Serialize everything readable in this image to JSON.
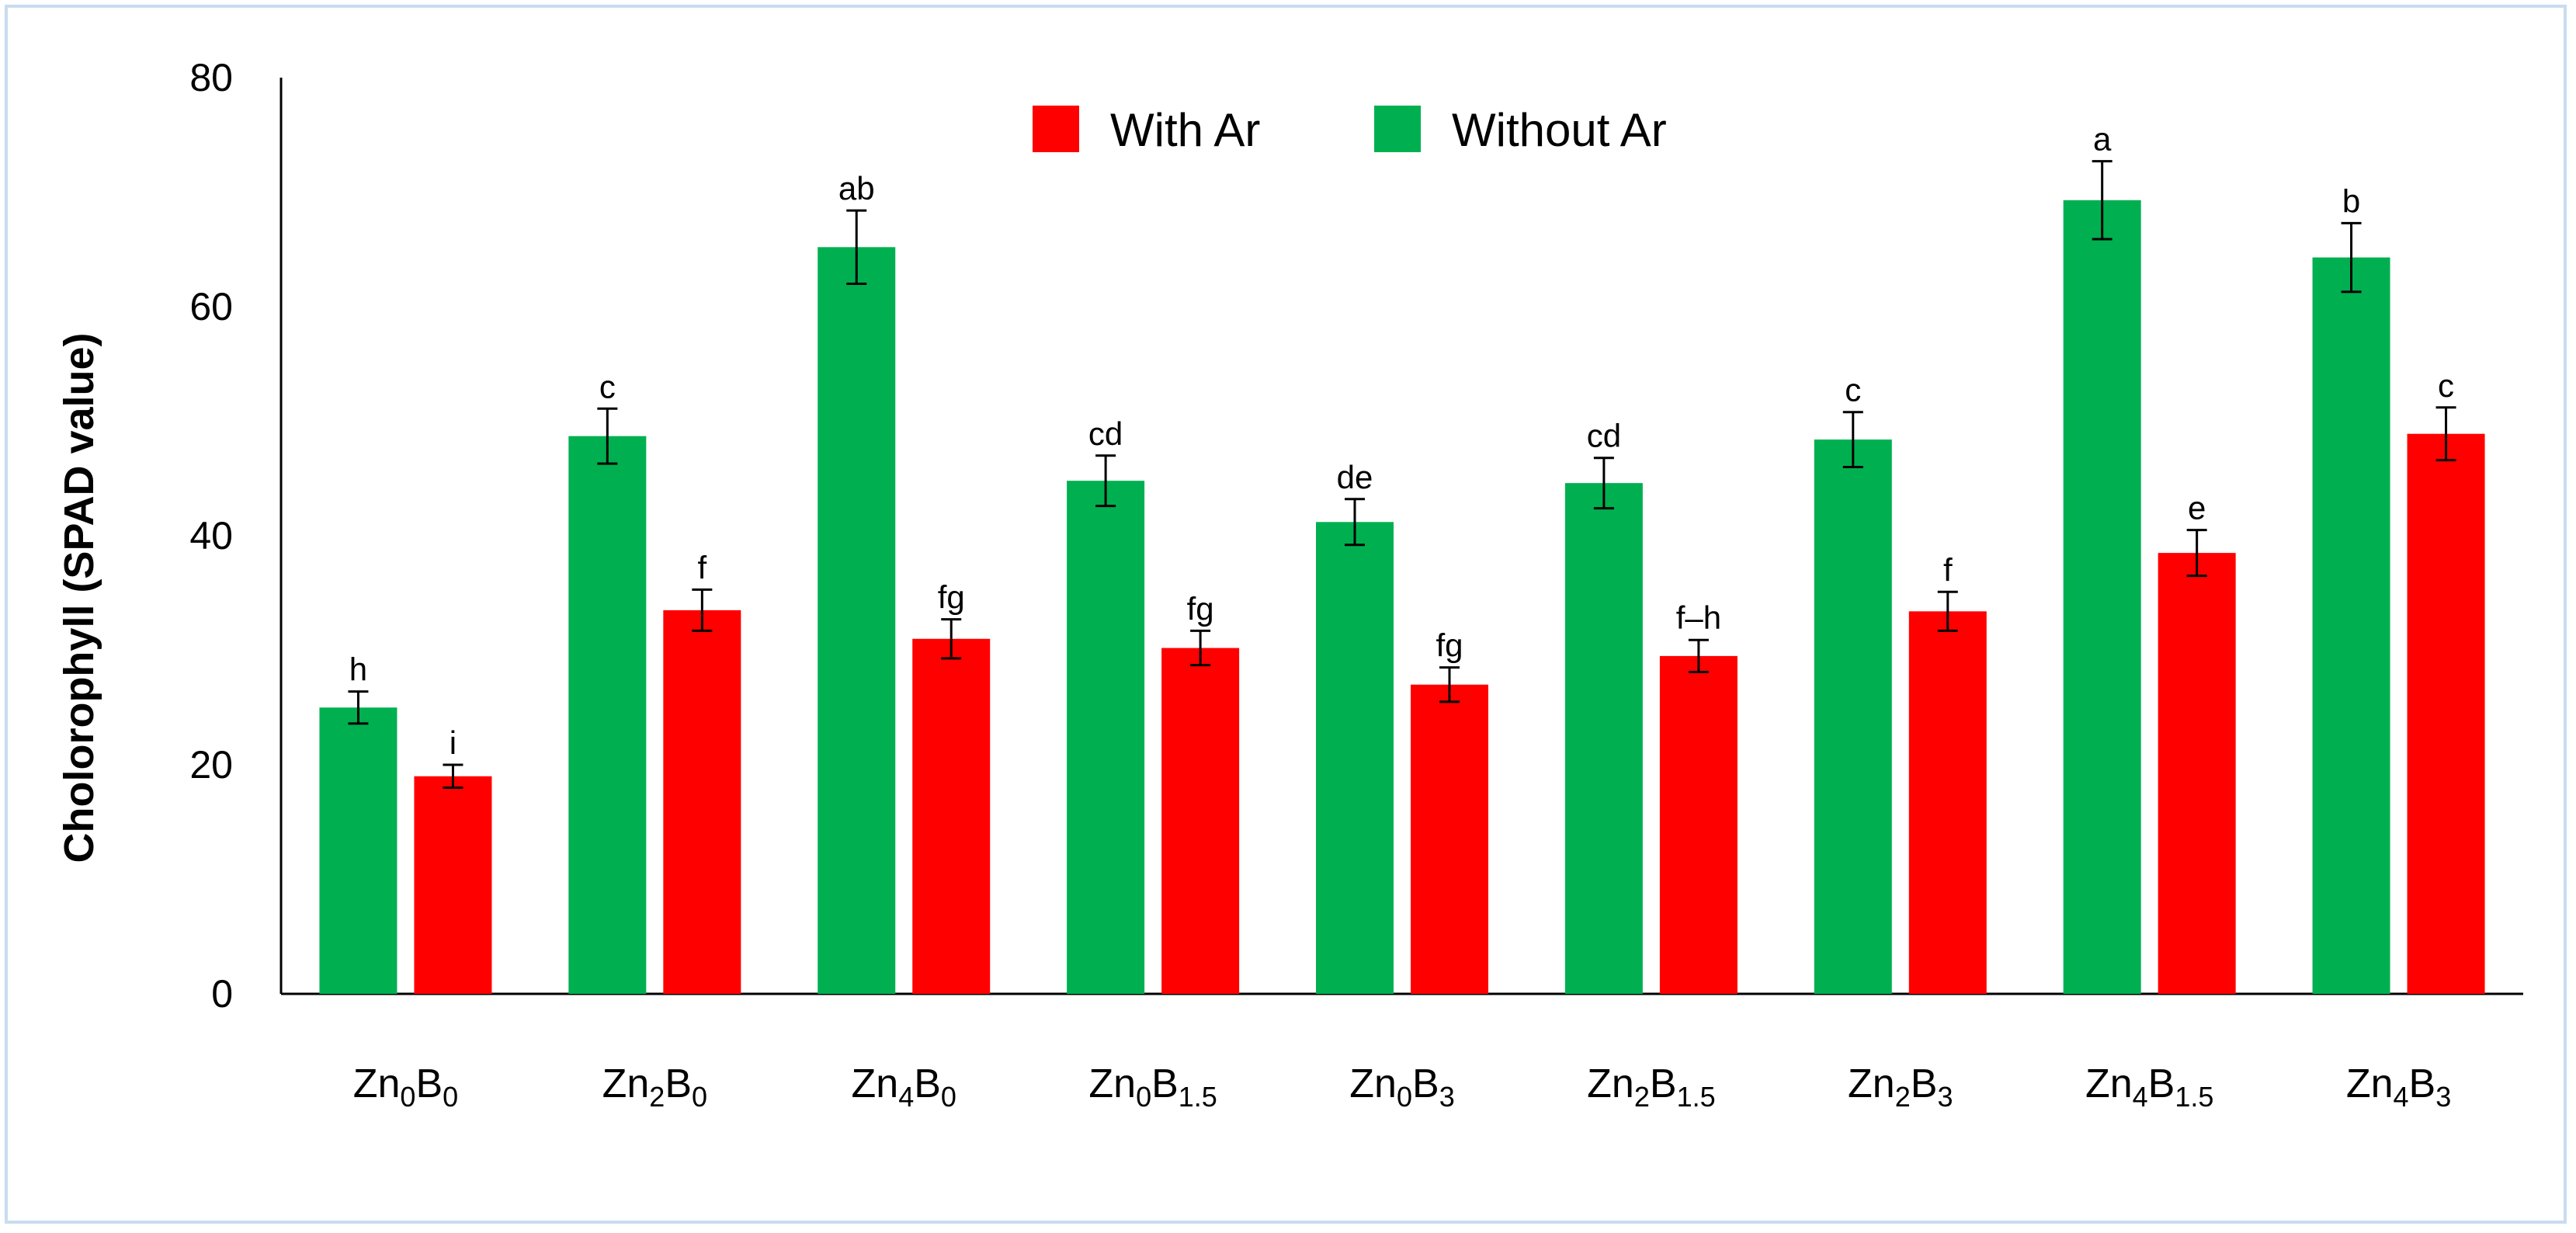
{
  "chart_data": {
    "type": "bar",
    "ylabel": "Cholorophyll (SPAD value)",
    "ylim": [
      0,
      80
    ],
    "yticks": [
      0,
      20,
      40,
      60,
      80
    ],
    "grid": false,
    "legend_position": "top-center",
    "categories": [
      {
        "base": "Zn",
        "base_sub": "0",
        "second": "B",
        "second_sub": "0"
      },
      {
        "base": "Zn",
        "base_sub": "2",
        "second": "B",
        "second_sub": "0"
      },
      {
        "base": "Zn",
        "base_sub": "4",
        "second": "B",
        "second_sub": "0"
      },
      {
        "base": "Zn",
        "base_sub": "0",
        "second": "B",
        "second_sub": "1.5"
      },
      {
        "base": "Zn",
        "base_sub": "0",
        "second": "B",
        "second_sub": "3"
      },
      {
        "base": "Zn",
        "base_sub": "2",
        "second": "B",
        "second_sub": "1.5"
      },
      {
        "base": "Zn",
        "base_sub": "2",
        "second": "B",
        "second_sub": "3"
      },
      {
        "base": "Zn",
        "base_sub": "4",
        "second": "B",
        "second_sub": "1.5"
      },
      {
        "base": "Zn",
        "base_sub": "4",
        "second": "B",
        "second_sub": "3"
      }
    ],
    "legend_order": [
      "With Ar",
      "Without Ar"
    ],
    "series": [
      {
        "name": "Without Ar",
        "color": "#00b050",
        "values": [
          25,
          48.7,
          65.2,
          44.8,
          41.2,
          44.6,
          48.4,
          69.3,
          64.3
        ],
        "errors": [
          1.4,
          2.4,
          3.2,
          2.2,
          2.0,
          2.2,
          2.4,
          3.4,
          3.0
        ],
        "letters": [
          "h",
          "c",
          "ab",
          "cd",
          "de",
          "cd",
          "c",
          "a",
          "b"
        ]
      },
      {
        "name": "With Ar",
        "color": "#ff0000",
        "values": [
          19,
          33.5,
          31,
          30.2,
          27,
          29.5,
          33.4,
          38.5,
          48.9
        ],
        "errors": [
          1.0,
          1.8,
          1.7,
          1.5,
          1.5,
          1.4,
          1.7,
          2.0,
          2.3
        ],
        "letters": [
          "i",
          "f",
          "fg",
          "fg",
          "fg",
          "f–h",
          "f",
          "e",
          "c"
        ]
      }
    ]
  }
}
